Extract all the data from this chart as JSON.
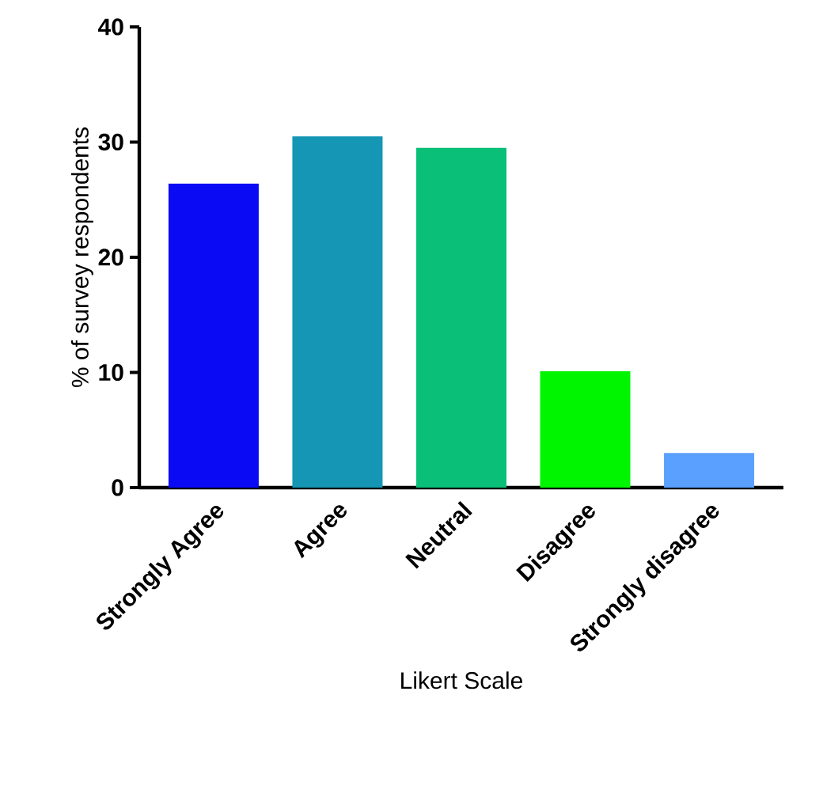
{
  "chart_data": {
    "type": "bar",
    "xlabel": "Likert Scale",
    "ylabel": "% of survey respondents",
    "categories": [
      "Strongly Agree",
      "Agree",
      "Neutral",
      "Disagree",
      "Strongly disagree"
    ],
    "values": [
      26.4,
      30.5,
      29.5,
      10.1,
      3.0
    ],
    "colors": [
      "#0a0af5",
      "#1496b4",
      "#0abf78",
      "#00f500",
      "#5aa0ff"
    ],
    "ylim": [
      0,
      40
    ],
    "yticks": [
      0,
      10,
      20,
      30,
      40
    ]
  }
}
